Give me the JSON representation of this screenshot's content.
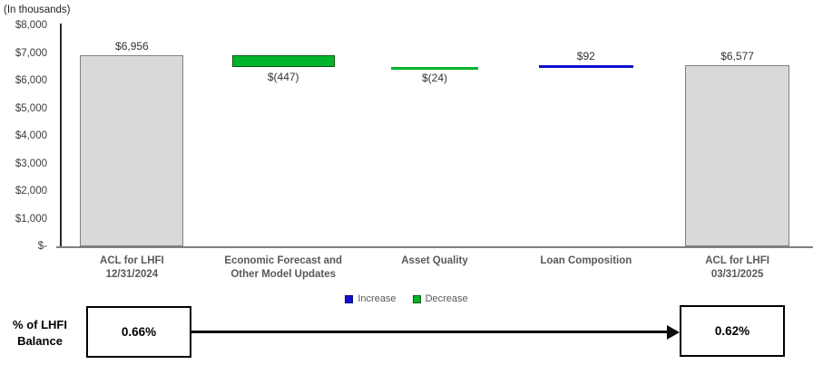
{
  "chart": {
    "units_label": "(In thousands)"
  },
  "chart_data": {
    "type": "bar",
    "subtype": "waterfall",
    "title": "",
    "units": "thousands",
    "categories": [
      "ACL for LHFI 12/31/2024",
      "Economic Forecast and Other Model Updates",
      "Asset Quality",
      "Loan Composition",
      "ACL for LHFI 03/31/2025"
    ],
    "bars": [
      {
        "label_lines": [
          "ACL for LHFI",
          "12/31/2024"
        ],
        "kind": "total",
        "start": 0,
        "end": 6956,
        "value": 6956,
        "value_label": "$6,956"
      },
      {
        "label_lines": [
          "Economic Forecast and",
          "Other Model Updates"
        ],
        "kind": "decrease",
        "start": 6956,
        "end": 6509,
        "value": -447,
        "value_label": "$(447)"
      },
      {
        "label_lines": [
          "Asset Quality"
        ],
        "kind": "decrease",
        "start": 6509,
        "end": 6485,
        "value": -24,
        "value_label": "$(24)"
      },
      {
        "label_lines": [
          "Loan Composition"
        ],
        "kind": "increase",
        "start": 6485,
        "end": 6577,
        "value": 92,
        "value_label": "$92"
      },
      {
        "label_lines": [
          "ACL for LHFI",
          "03/31/2025"
        ],
        "kind": "total",
        "start": 0,
        "end": 6577,
        "value": 6577,
        "value_label": "$6,577"
      }
    ],
    "y_axis": {
      "min": 0,
      "max": 8000,
      "tick_values": [
        8000,
        7000,
        6000,
        5000,
        4000,
        3000,
        2000,
        1000,
        0
      ],
      "tick_labels": [
        "$8,000",
        "$7,000",
        "$6,000",
        "$5,000",
        "$4,000",
        "$3,000",
        "$2,000",
        "$1,000",
        "$-"
      ]
    },
    "legend": [
      {
        "label": "Increase",
        "color": "#1010CC",
        "border": "#00008B"
      },
      {
        "label": "Decrease",
        "color": "#00B42A",
        "border": "#075A0F"
      }
    ],
    "colors": {
      "total_fill": "#D9D9D9",
      "total_border": "#7F7F7F",
      "increase": "#1010CC",
      "decrease": "#00B42A",
      "decrease_border": "#075A0F",
      "axis_label": "#595959"
    },
    "grid": false,
    "legend_position": "bottom-center"
  },
  "footer": {
    "row_label_line1": "% of LHFI",
    "row_label_line2": "Balance",
    "start_value": "0.66%",
    "end_value": "0.62%"
  }
}
